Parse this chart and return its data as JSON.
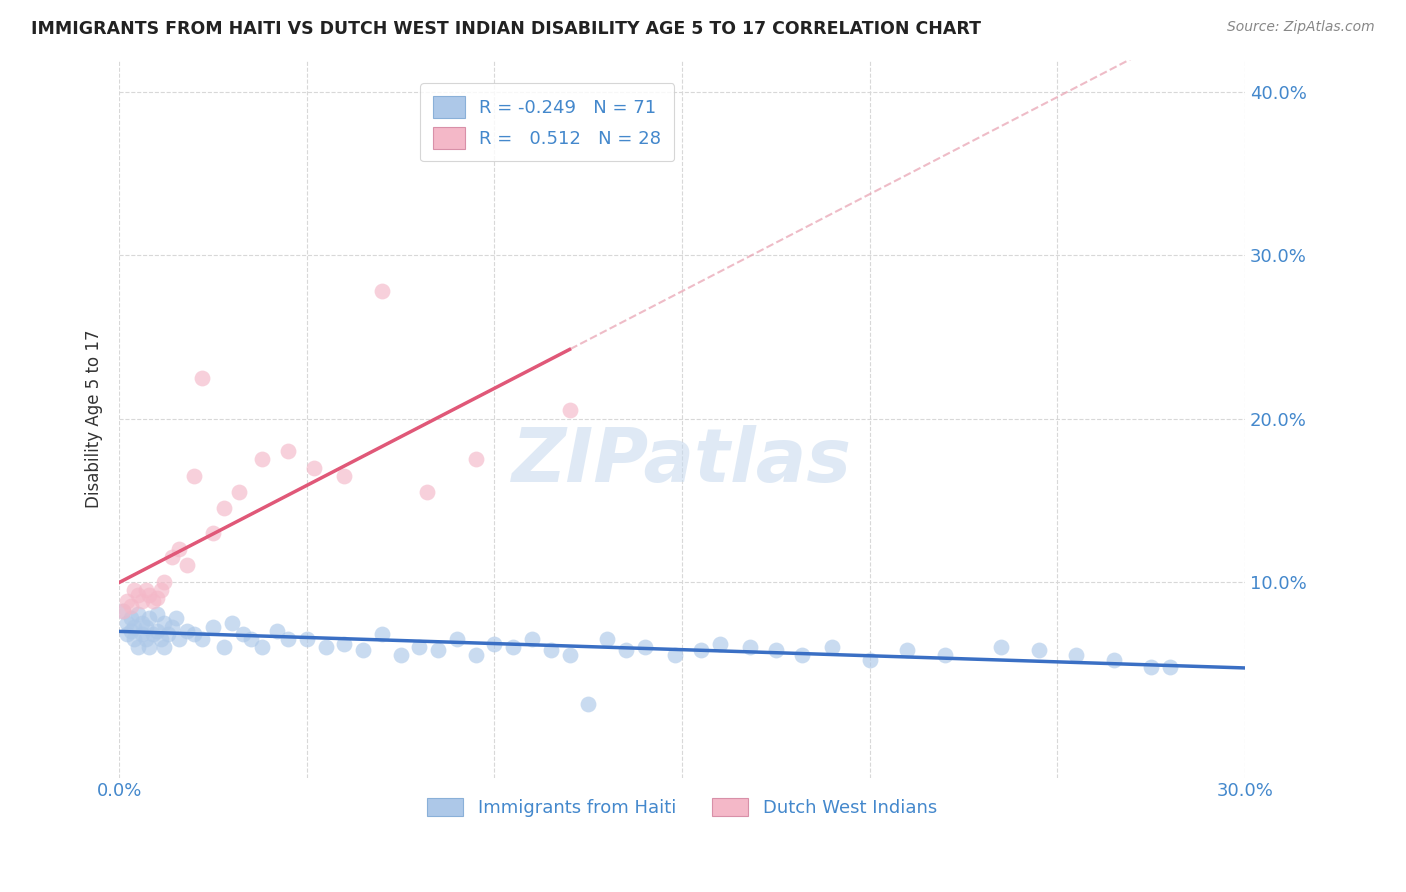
{
  "title": "IMMIGRANTS FROM HAITI VS DUTCH WEST INDIAN DISABILITY AGE 5 TO 17 CORRELATION CHART",
  "source": "Source: ZipAtlas.com",
  "ylabel": "Disability Age 5 to 17",
  "xlim": [
    0.0,
    0.3
  ],
  "ylim": [
    -0.02,
    0.42
  ],
  "ytick_vals": [
    0.1,
    0.2,
    0.3,
    0.4
  ],
  "ytick_labels": [
    "10.0%",
    "20.0%",
    "30.0%",
    "40.0%"
  ],
  "xtick_vals": [
    0.0,
    0.05,
    0.1,
    0.15,
    0.2,
    0.25,
    0.3
  ],
  "xtick_labels": [
    "0.0%",
    "",
    "",
    "",
    "",
    "",
    "30.0%"
  ],
  "watermark": "ZIPatlas",
  "blue_color": "#adc8e8",
  "pink_color": "#f4b8c8",
  "blue_line_color": "#3a6fc4",
  "pink_line_color": "#e05878",
  "dashed_line_color": "#e8a0b0",
  "grid_color": "#d8d8d8",
  "axis_color": "#4488cc",
  "title_color": "#222222",
  "legend_entry1_R": "-0.249",
  "legend_entry1_N": "71",
  "legend_entry2_R": "0.512",
  "legend_entry2_N": "28",
  "legend_label1": "Immigrants from Haiti",
  "legend_label2": "Dutch West Indians",
  "haiti_x": [
    0.001,
    0.002,
    0.002,
    0.003,
    0.003,
    0.004,
    0.004,
    0.005,
    0.005,
    0.006,
    0.006,
    0.007,
    0.007,
    0.008,
    0.008,
    0.009,
    0.01,
    0.01,
    0.011,
    0.012,
    0.012,
    0.013,
    0.014,
    0.015,
    0.016,
    0.018,
    0.02,
    0.022,
    0.025,
    0.028,
    0.03,
    0.033,
    0.035,
    0.038,
    0.042,
    0.045,
    0.05,
    0.055,
    0.06,
    0.065,
    0.07,
    0.075,
    0.08,
    0.085,
    0.09,
    0.095,
    0.1,
    0.105,
    0.11,
    0.115,
    0.12,
    0.125,
    0.13,
    0.135,
    0.14,
    0.148,
    0.155,
    0.16,
    0.168,
    0.175,
    0.182,
    0.19,
    0.2,
    0.21,
    0.22,
    0.235,
    0.245,
    0.255,
    0.265,
    0.275,
    0.28
  ],
  "haiti_y": [
    0.082,
    0.075,
    0.068,
    0.078,
    0.07,
    0.065,
    0.072,
    0.08,
    0.06,
    0.075,
    0.068,
    0.072,
    0.065,
    0.078,
    0.06,
    0.068,
    0.08,
    0.07,
    0.065,
    0.075,
    0.06,
    0.068,
    0.072,
    0.078,
    0.065,
    0.07,
    0.068,
    0.065,
    0.072,
    0.06,
    0.075,
    0.068,
    0.065,
    0.06,
    0.07,
    0.065,
    0.065,
    0.06,
    0.062,
    0.058,
    0.068,
    0.055,
    0.06,
    0.058,
    0.065,
    0.055,
    0.062,
    0.06,
    0.065,
    0.058,
    0.055,
    0.025,
    0.065,
    0.058,
    0.06,
    0.055,
    0.058,
    0.062,
    0.06,
    0.058,
    0.055,
    0.06,
    0.052,
    0.058,
    0.055,
    0.06,
    0.058,
    0.055,
    0.052,
    0.048,
    0.048
  ],
  "dwi_x": [
    0.001,
    0.002,
    0.003,
    0.004,
    0.005,
    0.006,
    0.007,
    0.008,
    0.009,
    0.01,
    0.011,
    0.012,
    0.014,
    0.016,
    0.018,
    0.02,
    0.022,
    0.025,
    0.028,
    0.032,
    0.038,
    0.045,
    0.052,
    0.06,
    0.07,
    0.082,
    0.095,
    0.12
  ],
  "dwi_y": [
    0.082,
    0.088,
    0.085,
    0.095,
    0.092,
    0.088,
    0.095,
    0.092,
    0.088,
    0.09,
    0.095,
    0.1,
    0.115,
    0.12,
    0.11,
    0.165,
    0.225,
    0.13,
    0.145,
    0.155,
    0.175,
    0.18,
    0.17,
    0.165,
    0.278,
    0.155,
    0.175,
    0.205
  ]
}
